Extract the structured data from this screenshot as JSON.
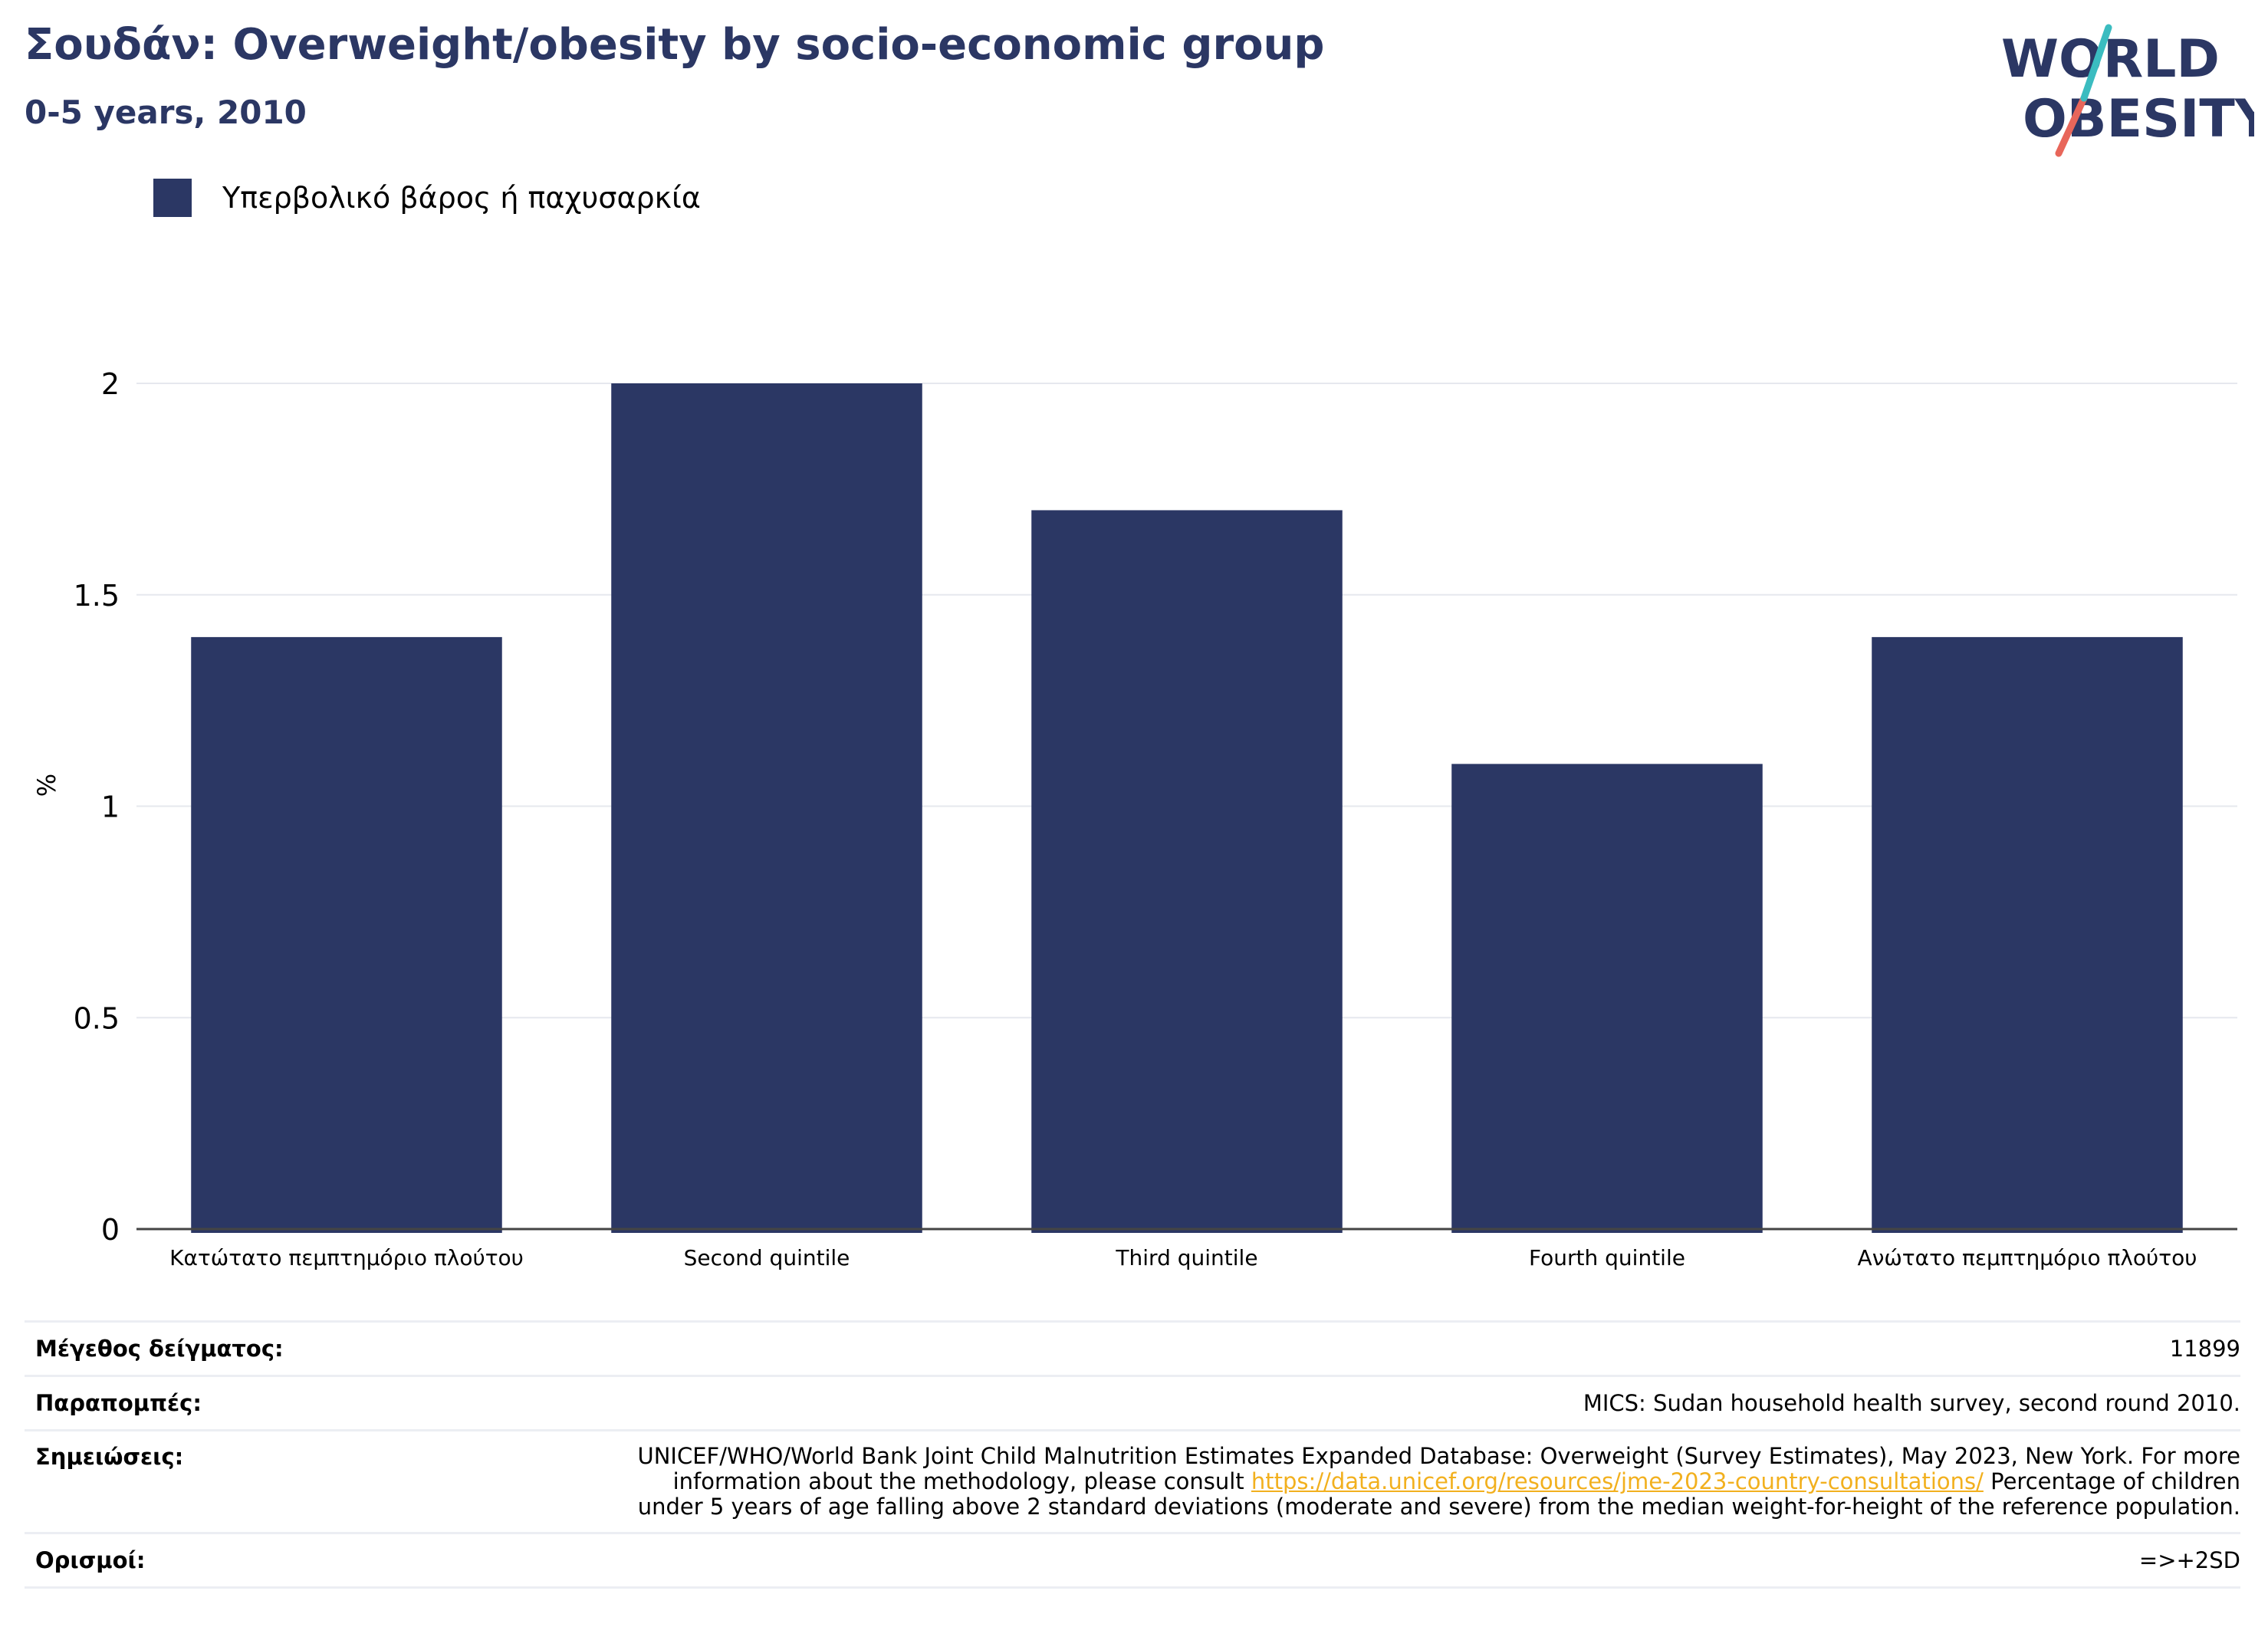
{
  "header": {
    "title": "Σουδάν: Overweight/obesity by socio-economic group",
    "subtitle": "0-5 years, 2010"
  },
  "logo": {
    "line1": "WORLD",
    "line2": "OBESITY"
  },
  "colors": {
    "bar": "#2b3764",
    "title": "#2b3764",
    "link": "#f2b01e",
    "logo_teal": "#3bbcc0",
    "logo_coral": "#e8665a"
  },
  "chart_data": {
    "type": "bar",
    "categories": [
      "Κατώτατο πεμπτημόριο πλούτου",
      "Second quintile",
      "Third quintile",
      "Fourth quintile",
      "Ανώτατο πεμπτημόριο πλούτου"
    ],
    "series": [
      {
        "name": "Υπερβολικό βάρος ή παχυσαρκία",
        "values": [
          1.4,
          2.0,
          1.7,
          1.1,
          1.4
        ]
      }
    ],
    "ylabel": "%",
    "ylim": [
      0,
      2.1
    ],
    "yticks": [
      0,
      0.5,
      1,
      1.5,
      2
    ],
    "ytick_labels": [
      "0",
      "0.5",
      "1",
      "1.5",
      "2"
    ],
    "grid": true,
    "legend_position": "top-left"
  },
  "footer": {
    "sample_label": "Μέγεθος δείγματος:",
    "sample_value": "11899",
    "refs_label": "Παραπομπές:",
    "refs_value": "MICS: Sudan household health survey, second round 2010.",
    "notes_label": "Σημειώσεις:",
    "notes_before": "UNICEF/WHO/World Bank Joint Child Malnutrition Estimates Expanded Database: Overweight (Survey Estimates), May 2023, New York. For more information about the methodology, please consult ",
    "notes_link": "https://data.unicef.org/resources/jme-2023-country-consultations/",
    "notes_after": " Percentage of children under 5 years of age falling above 2 standard deviations (moderate and severe) from the median weight-for-height of the reference population.",
    "defs_label": "Ορισμοί:",
    "defs_value": "=>+2SD"
  }
}
